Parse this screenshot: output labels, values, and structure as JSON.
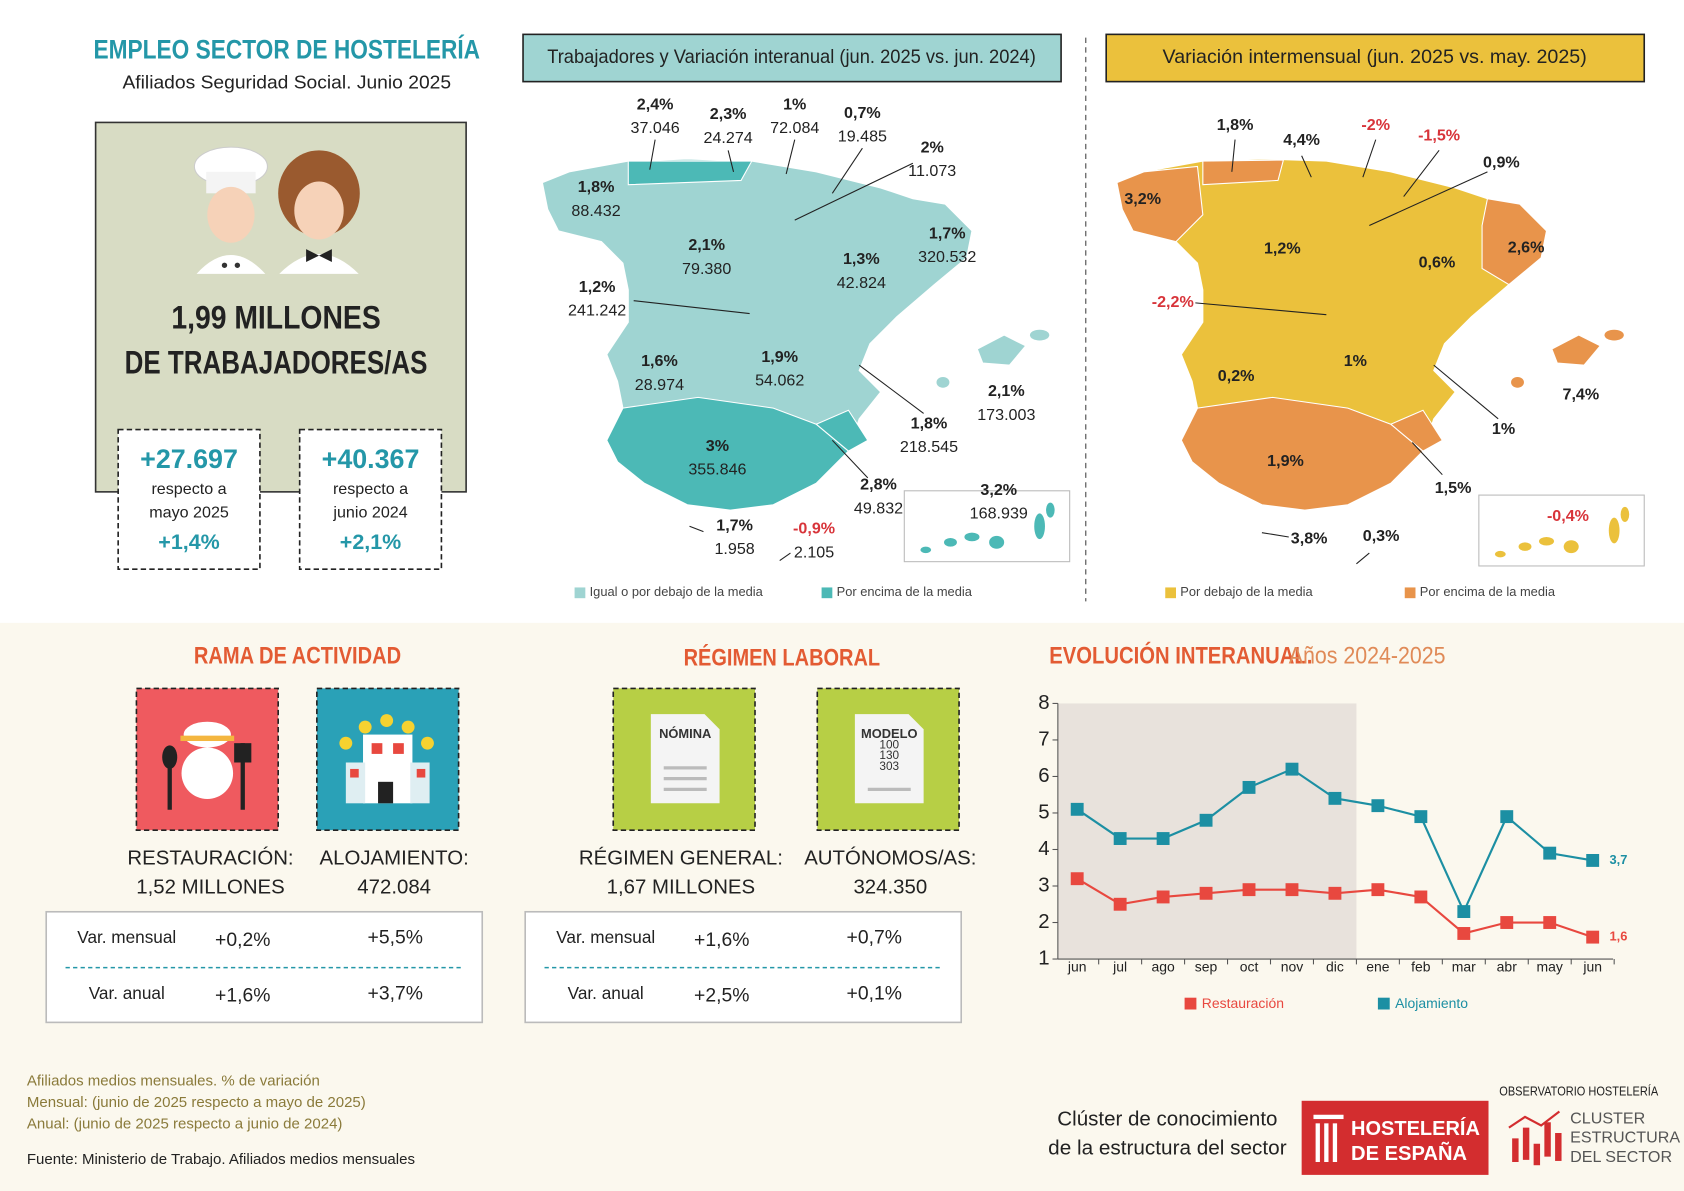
{
  "header": {
    "title": "EMPLEO SECTOR DE HOSTELERÍA",
    "subtitle": "Afiliados Seguridad Social. Junio 2025"
  },
  "total": {
    "lines": [
      "1,99 MILLONES",
      "DE TRABAJADORES/AS"
    ]
  },
  "kpis": [
    {
      "value": "+27.697",
      "caption": [
        "respecto a",
        "mayo 2025"
      ],
      "pct": "+1,4%"
    },
    {
      "value": "+40.367",
      "caption": [
        "respecto a",
        "junio 2024"
      ],
      "pct": "+2,1%"
    }
  ],
  "maps": [
    {
      "title": "Trabajadores y Variación interanual (jun. 2025 vs. jun. 2024)",
      "legend": [
        {
          "name": "Igual o por debajo de la media",
          "color": "#9fd4d2"
        },
        {
          "name": "Por encima de la media",
          "color": "#4cb9b6"
        }
      ],
      "labels": [
        {
          "pct": "2,4%",
          "count": "37.046"
        },
        {
          "pct": "2,3%",
          "count": "24.274"
        },
        {
          "pct": "1%",
          "count": "72.084"
        },
        {
          "pct": "0,7%",
          "count": "19.485"
        },
        {
          "pct": "2%",
          "count": "11.073"
        },
        {
          "pct": "1,8%",
          "count": "88.432"
        },
        {
          "pct": "2,1%",
          "count": "79.380"
        },
        {
          "pct": "1,7%",
          "count": "320.532"
        },
        {
          "pct": "1,3%",
          "count": "42.824"
        },
        {
          "pct": "1,2%",
          "count": "241.242"
        },
        {
          "pct": "1,6%",
          "count": "28.974"
        },
        {
          "pct": "1,9%",
          "count": "54.062"
        },
        {
          "pct": "2,1%",
          "count": "173.003"
        },
        {
          "pct": "1,8%",
          "count": "218.545"
        },
        {
          "pct": "3%",
          "count": "355.846"
        },
        {
          "pct": "2,8%",
          "count": "49.832"
        },
        {
          "pct": "3,2%",
          "count": "168.939"
        },
        {
          "pct": "1,7%",
          "count": "1.958"
        },
        {
          "pct": "-0,9%",
          "count": "2.105"
        }
      ]
    },
    {
      "title": "Variación intermensual (jun. 2025 vs. may. 2025)",
      "legend": [
        {
          "name": "Por debajo de la media",
          "color": "#ebc13c"
        },
        {
          "name": "Por encima de la media",
          "color": "#e8944b"
        }
      ],
      "labels": [
        {
          "pct": "1,8%"
        },
        {
          "pct": "4,4%"
        },
        {
          "pct": "-2%"
        },
        {
          "pct": "-1,5%"
        },
        {
          "pct": "0,9%"
        },
        {
          "pct": "3,2%"
        },
        {
          "pct": "1,2%"
        },
        {
          "pct": "0,6%"
        },
        {
          "pct": "2,6%"
        },
        {
          "pct": "-2,2%"
        },
        {
          "pct": "0,2%"
        },
        {
          "pct": "1%"
        },
        {
          "pct": "7,4%"
        },
        {
          "pct": "1%"
        },
        {
          "pct": "1,9%"
        },
        {
          "pct": "1,5%"
        },
        {
          "pct": "3,8%"
        },
        {
          "pct": "0,3%"
        },
        {
          "pct": "-0,4%"
        }
      ]
    }
  ],
  "rama": {
    "title": "RAMA DE ACTIVIDAD",
    "items": [
      {
        "name": "RESTAURACIÓN:",
        "value": "1,52 MILLONES"
      },
      {
        "name": "ALOJAMIENTO:",
        "value": "472.084"
      }
    ],
    "table": [
      [
        "Var. mensual",
        "+0,2%",
        "+5,5%"
      ],
      [
        "Var. anual",
        "+1,6%",
        "+3,7%"
      ]
    ]
  },
  "regimen": {
    "title": "RÉGIMEN LABORAL",
    "icons": [
      [
        "NÓMINA"
      ],
      [
        "MODELO",
        "100",
        "130",
        "303"
      ]
    ],
    "items": [
      {
        "name": "RÉGIMEN GENERAL:",
        "value": "1,67 MILLONES"
      },
      {
        "name": "AUTÓNOMOS/AS:",
        "value": "324.350"
      }
    ],
    "table": [
      [
        "Var. mensual",
        "+1,6%",
        "+0,7%"
      ],
      [
        "Var. anual",
        "+2,5%",
        "+0,1%"
      ]
    ]
  },
  "chart_data": {
    "type": "line",
    "title": "EVOLUCIÓN INTERANUAL.",
    "subtitle": "Años 2024-2025",
    "categories": [
      "jun",
      "jul",
      "ago",
      "sep",
      "oct",
      "nov",
      "dic",
      "ene",
      "feb",
      "mar",
      "abr",
      "may",
      "jun"
    ],
    "series": [
      {
        "name": "Restauración",
        "color": "#e8483f",
        "values": [
          3.2,
          2.5,
          2.7,
          2.8,
          2.9,
          2.9,
          2.8,
          2.9,
          2.7,
          1.7,
          2.0,
          2.0,
          1.6
        ],
        "value_labels": [
          null,
          null,
          null,
          null,
          null,
          null,
          null,
          null,
          null,
          null,
          null,
          null,
          "1,6"
        ]
      },
      {
        "name": "Alojamiento",
        "color": "#1c8fa3",
        "values": [
          5.1,
          4.3,
          4.3,
          4.8,
          5.7,
          6.2,
          5.4,
          5.2,
          4.9,
          2.3,
          4.9,
          3.9,
          3.7
        ],
        "value_labels": [
          null,
          null,
          null,
          null,
          null,
          null,
          null,
          null,
          null,
          null,
          null,
          null,
          "3,7"
        ]
      }
    ],
    "ylim": [
      1,
      8
    ],
    "yticks": [
      1,
      2,
      3,
      4,
      5,
      6,
      7,
      8
    ]
  },
  "notes": [
    "Afiliados medios mensuales. % de variación",
    "Mensual: (junio de 2025 respecto a mayo de 2025)",
    "Anual: (junio de 2025 respecto a junio de 2024)"
  ],
  "source": "Fuente: Ministerio de Trabajo. Afiliados medios mensuales",
  "logos": {
    "cluster": [
      "Clúster de conocimiento",
      "de la estructura del sector"
    ],
    "hosteleria": [
      "HOSTELERÍA",
      "DE ESPAÑA"
    ],
    "observatorio": "OBSERVATORIO HOSTELERÍA",
    "cluster_logo": [
      "CLUSTER",
      "ESTRUCTURA",
      "DEL SECTOR"
    ]
  }
}
